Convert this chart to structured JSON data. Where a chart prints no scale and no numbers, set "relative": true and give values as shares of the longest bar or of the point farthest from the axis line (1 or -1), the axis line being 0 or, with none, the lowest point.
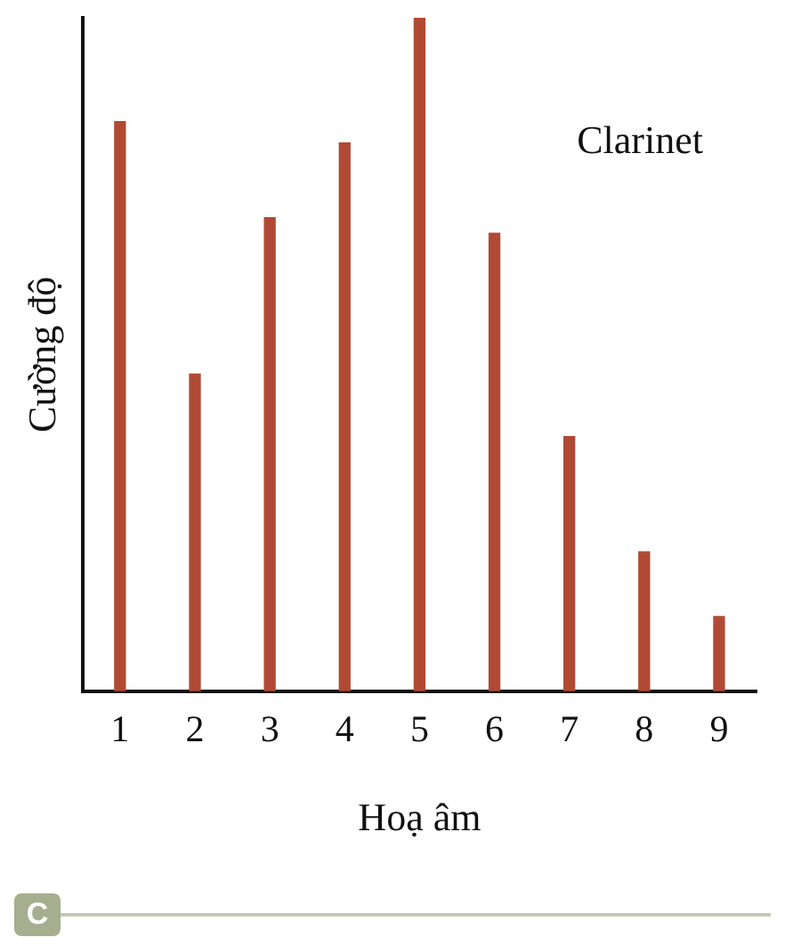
{
  "chart_data": {
    "type": "bar",
    "title": "Clarinet",
    "xlabel": "Hoạ âm",
    "ylabel": "Cường độ",
    "categories": [
      "1",
      "2",
      "3",
      "4",
      "5",
      "6",
      "7",
      "8",
      "9"
    ],
    "values": [
      0.846,
      0.471,
      0.703,
      0.814,
      1,
      0.68,
      0.378,
      0.207,
      0.111
    ],
    "color": "#b04a35",
    "relative": true,
    "grid": false,
    "legend": false,
    "annotations": [
      "C"
    ]
  }
}
